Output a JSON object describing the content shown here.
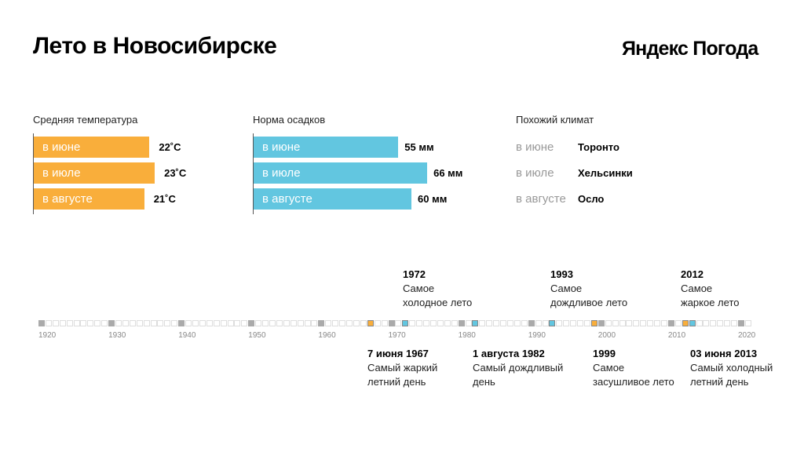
{
  "title": "Лето в Новосибирске",
  "logo": "Яндекс Погода",
  "colors": {
    "temp": "#f9ae3b",
    "rain": "#62c6e0",
    "decade": "#aaaaaa"
  },
  "chart_data": [
    {
      "type": "bar",
      "title": "Средняя температура",
      "categories": [
        "в июне",
        "в июле",
        "в августе"
      ],
      "values": [
        22,
        23,
        21
      ],
      "labels": [
        "22˚C",
        "23˚C",
        "21˚C"
      ],
      "unit": "°C"
    },
    {
      "type": "bar",
      "title": "Норма осадков",
      "categories": [
        "в июне",
        "в июле",
        "в августе"
      ],
      "values": [
        55,
        66,
        60
      ],
      "labels": [
        "55 мм",
        "66 мм",
        "60 мм"
      ],
      "unit": "мм"
    },
    {
      "type": "timeline",
      "range": [
        1920,
        2021
      ],
      "tick_labels": [
        "1920",
        "1930",
        "1940",
        "1950",
        "1960",
        "1970",
        "1980",
        "1990",
        "2000",
        "2010",
        "2020"
      ],
      "events": [
        {
          "year": 1967,
          "kind": "hot",
          "pos": "bottom",
          "head": "7 июня 1967",
          "lines": [
            "Самый жаркий",
            "летний день"
          ]
        },
        {
          "year": 1972,
          "kind": "cold",
          "pos": "top",
          "head": "1972",
          "lines": [
            "Самое",
            "холодное лето"
          ]
        },
        {
          "year": 1982,
          "kind": "cold",
          "pos": "bottom",
          "head": "1 августа 1982",
          "lines": [
            "Самый дождливый",
            "день"
          ]
        },
        {
          "year": 1993,
          "kind": "cold",
          "pos": "top",
          "head": "1993",
          "lines": [
            "Самое",
            "дождливое лето"
          ]
        },
        {
          "year": 1999,
          "kind": "hot",
          "pos": "bottom",
          "head": "1999",
          "lines": [
            "Самое",
            "засушливое лето"
          ]
        },
        {
          "year": 2012,
          "kind": "hot",
          "pos": "top",
          "head": "2012",
          "lines": [
            "Самое",
            "жаркое лето"
          ]
        },
        {
          "year": 2013,
          "kind": "cold",
          "pos": "bottom",
          "head": "03 июня 2013",
          "lines": [
            "Самый холодный",
            "летний день"
          ]
        }
      ]
    }
  ],
  "climate": {
    "title": "Похожий климат",
    "rows": [
      {
        "month": "в июне",
        "city": "Торонто"
      },
      {
        "month": "в июле",
        "city": "Хельсинки"
      },
      {
        "month": "в августе",
        "city": "Осло"
      }
    ]
  }
}
